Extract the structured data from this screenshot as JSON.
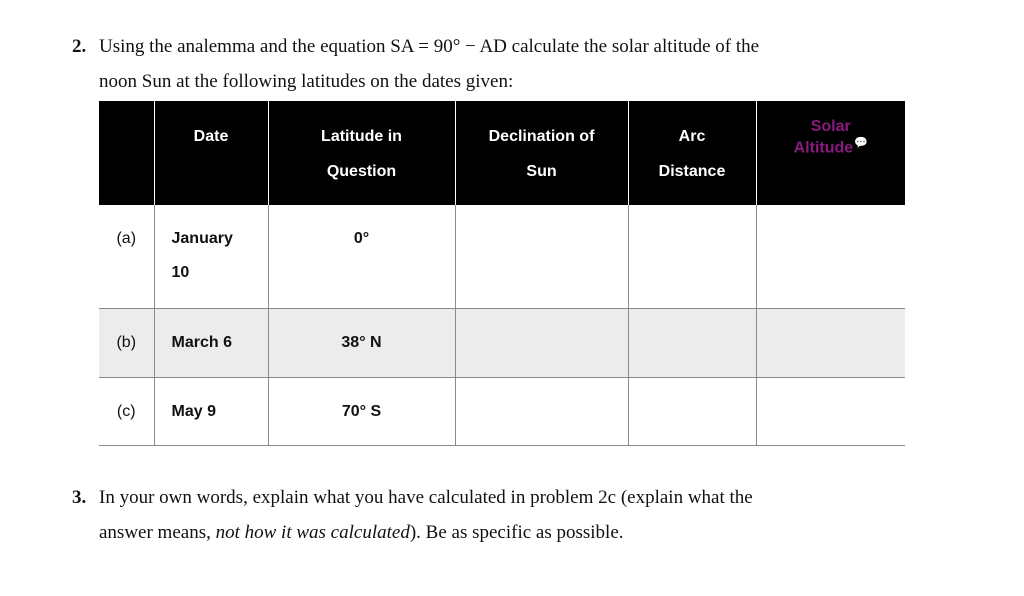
{
  "question2": {
    "number": "2.",
    "line1": "Using the analemma and the equation SA = 90° − AD calculate the solar altitude of the",
    "line2": "noon Sun at the following latitudes on the dates given:"
  },
  "table": {
    "headers": {
      "date": "Date",
      "latitude_1": "Latitude in",
      "latitude_2": "Question",
      "declination_1": "Declination of",
      "declination_2": "Sun",
      "arc_1": "Arc",
      "arc_2": "Distance",
      "solar_1": "Solar",
      "solar_2": "Altitude"
    },
    "rows": [
      {
        "label": "(a)",
        "date_1": "January",
        "date_2": "10",
        "latitude": "0°"
      },
      {
        "label": "(b)",
        "date_1": "March 6",
        "date_2": "",
        "latitude": "38° N"
      },
      {
        "label": "(c)",
        "date_1": "May 9",
        "date_2": "",
        "latitude": "70° S"
      }
    ],
    "colors": {
      "header_bg": "#000000",
      "solar_header_text": "#8a1a7e",
      "shaded_row": "#ececec"
    }
  },
  "question3": {
    "number": "3.",
    "line1": "In your own words, explain what you have calculated in problem 2c (explain what the",
    "line2_start": "answer means, ",
    "line2_italic": "not how it was calculated",
    "line2_end": "). Be as specific as possible."
  }
}
